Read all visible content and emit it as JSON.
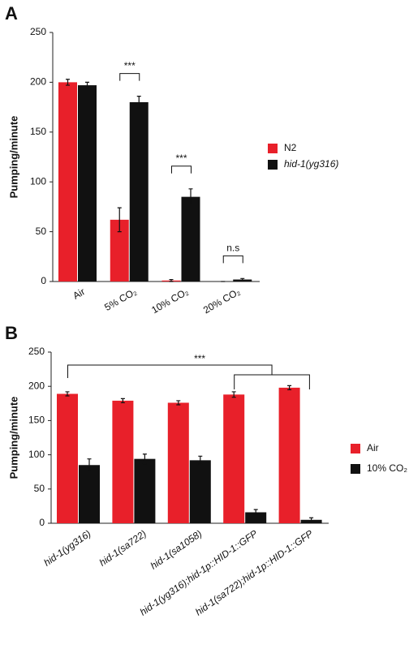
{
  "chart_data": [
    {
      "type": "bar",
      "panel_label": "A",
      "y_label": "Pumping/minute",
      "categories": [
        "Air",
        "5% CO₂",
        "10% CO₂",
        "20% CO₂"
      ],
      "series": [
        {
          "name": "N2",
          "color": "#e8202a",
          "values": [
            200,
            62,
            1,
            0
          ],
          "errors": [
            3,
            12,
            1,
            0
          ]
        },
        {
          "name": "hid-1(yg316)",
          "color": "#111111",
          "values": [
            197,
            180,
            85,
            2
          ],
          "errors": [
            3,
            6,
            8,
            1
          ]
        }
      ],
      "ylim": [
        0,
        250
      ],
      "yticks": [
        0,
        50,
        100,
        150,
        200,
        250
      ],
      "annotations": [
        "***",
        "***",
        "n.s"
      ]
    },
    {
      "type": "bar",
      "panel_label": "B",
      "y_label": "Pumping/minute",
      "categories": [
        "hid-1(yg316)",
        "hid-1(sa722)",
        "hid-1(sa1058)",
        "hid-1(yg316);hid-1p::HID-1::GFP",
        "hid-1(sa722);hid-1p::HID-1::GFP"
      ],
      "series": [
        {
          "name": "Air",
          "color": "#e8202a",
          "values": [
            189,
            179,
            176,
            188,
            198
          ],
          "errors": [
            3,
            3,
            3,
            4,
            3
          ]
        },
        {
          "name": "10% CO₂",
          "color": "#111111",
          "values": [
            85,
            94,
            92,
            16,
            5
          ],
          "errors": [
            9,
            7,
            6,
            4,
            3
          ]
        }
      ],
      "ylim": [
        0,
        250
      ],
      "yticks": [
        0,
        50,
        100,
        150,
        200,
        250
      ],
      "annotations": [
        "***"
      ]
    }
  ]
}
